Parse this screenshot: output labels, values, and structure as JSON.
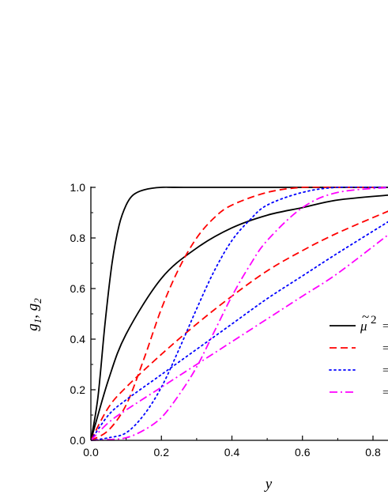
{
  "chart_data": {
    "type": "line",
    "xlabel": "y",
    "ylabel": "g",
    "ylabel_subscripts": [
      "1",
      "2"
    ],
    "xlim": [
      0.0,
      0.85
    ],
    "ylim": [
      0.0,
      1.0
    ],
    "x_ticks": [
      "0.0",
      "0.2",
      "0.4",
      "0.6",
      "0.8"
    ],
    "x_tick_values": [
      0.0,
      0.2,
      0.4,
      0.6,
      0.8
    ],
    "y_ticks": [
      "0.0",
      "0.2",
      "0.4",
      "0.6",
      "0.8",
      "1.0"
    ],
    "y_tick_values": [
      0.0,
      0.2,
      0.4,
      0.6,
      0.8,
      1.0
    ],
    "grid": false,
    "legend": {
      "placement": "right",
      "symbol_base": "μ",
      "symbol_accent": "~",
      "symbol_power": "2",
      "entries": [
        "=",
        "=",
        "=",
        "="
      ]
    },
    "series": [
      {
        "style": "solid",
        "color": "#000000",
        "curve": "g1",
        "x": [
          0,
          0.02,
          0.04,
          0.06,
          0.08,
          0.1,
          0.12,
          0.15,
          0.2,
          0.3,
          0.85
        ],
        "y": [
          0,
          0.17,
          0.46,
          0.7,
          0.85,
          0.93,
          0.97,
          0.99,
          1.0,
          1.0,
          1.0
        ]
      },
      {
        "style": "solid",
        "color": "#000000",
        "curve": "g2",
        "x": [
          0,
          0.05,
          0.1,
          0.2,
          0.3,
          0.4,
          0.5,
          0.6,
          0.7,
          0.85
        ],
        "y": [
          0,
          0.24,
          0.42,
          0.64,
          0.76,
          0.84,
          0.89,
          0.92,
          0.95,
          0.97
        ]
      },
      {
        "style": "dashed",
        "color": "#ff0000",
        "curve": "g1",
        "x": [
          0,
          0.05,
          0.1,
          0.15,
          0.2,
          0.25,
          0.3,
          0.35,
          0.4,
          0.5,
          0.6,
          0.7,
          0.85
        ],
        "y": [
          0,
          0.04,
          0.14,
          0.32,
          0.52,
          0.68,
          0.8,
          0.88,
          0.93,
          0.98,
          1.0,
          1.0,
          1.0
        ]
      },
      {
        "style": "dashed",
        "color": "#ff0000",
        "curve": "g2",
        "x": [
          0,
          0.05,
          0.1,
          0.2,
          0.3,
          0.4,
          0.5,
          0.6,
          0.7,
          0.85
        ],
        "y": [
          0,
          0.13,
          0.21,
          0.34,
          0.46,
          0.57,
          0.67,
          0.75,
          0.82,
          0.91
        ]
      },
      {
        "style": "dotted",
        "color": "#0000ff",
        "curve": "g1",
        "x": [
          0,
          0.05,
          0.1,
          0.15,
          0.2,
          0.25,
          0.3,
          0.35,
          0.4,
          0.45,
          0.5,
          0.6,
          0.7,
          0.85
        ],
        "y": [
          0,
          0.01,
          0.03,
          0.1,
          0.21,
          0.36,
          0.52,
          0.67,
          0.79,
          0.87,
          0.93,
          0.98,
          1.0,
          1.0
        ]
      },
      {
        "style": "dotted",
        "color": "#0000ff",
        "curve": "g2",
        "x": [
          0,
          0.05,
          0.1,
          0.2,
          0.3,
          0.4,
          0.5,
          0.6,
          0.7,
          0.85
        ],
        "y": [
          0,
          0.1,
          0.16,
          0.26,
          0.36,
          0.46,
          0.56,
          0.65,
          0.74,
          0.87
        ]
      },
      {
        "style": "dashdot",
        "color": "#ff00ff",
        "curve": "g1",
        "x": [
          0,
          0.05,
          0.1,
          0.15,
          0.2,
          0.25,
          0.3,
          0.35,
          0.4,
          0.45,
          0.5,
          0.6,
          0.7,
          0.85
        ],
        "y": [
          0,
          0.003,
          0.01,
          0.04,
          0.09,
          0.18,
          0.29,
          0.43,
          0.57,
          0.69,
          0.79,
          0.92,
          0.98,
          1.0
        ]
      },
      {
        "style": "dashdot",
        "color": "#ff00ff",
        "curve": "g2",
        "x": [
          0,
          0.05,
          0.1,
          0.2,
          0.3,
          0.4,
          0.5,
          0.6,
          0.7,
          0.85
        ],
        "y": [
          0,
          0.07,
          0.12,
          0.21,
          0.3,
          0.39,
          0.48,
          0.57,
          0.66,
          0.82
        ]
      }
    ]
  }
}
